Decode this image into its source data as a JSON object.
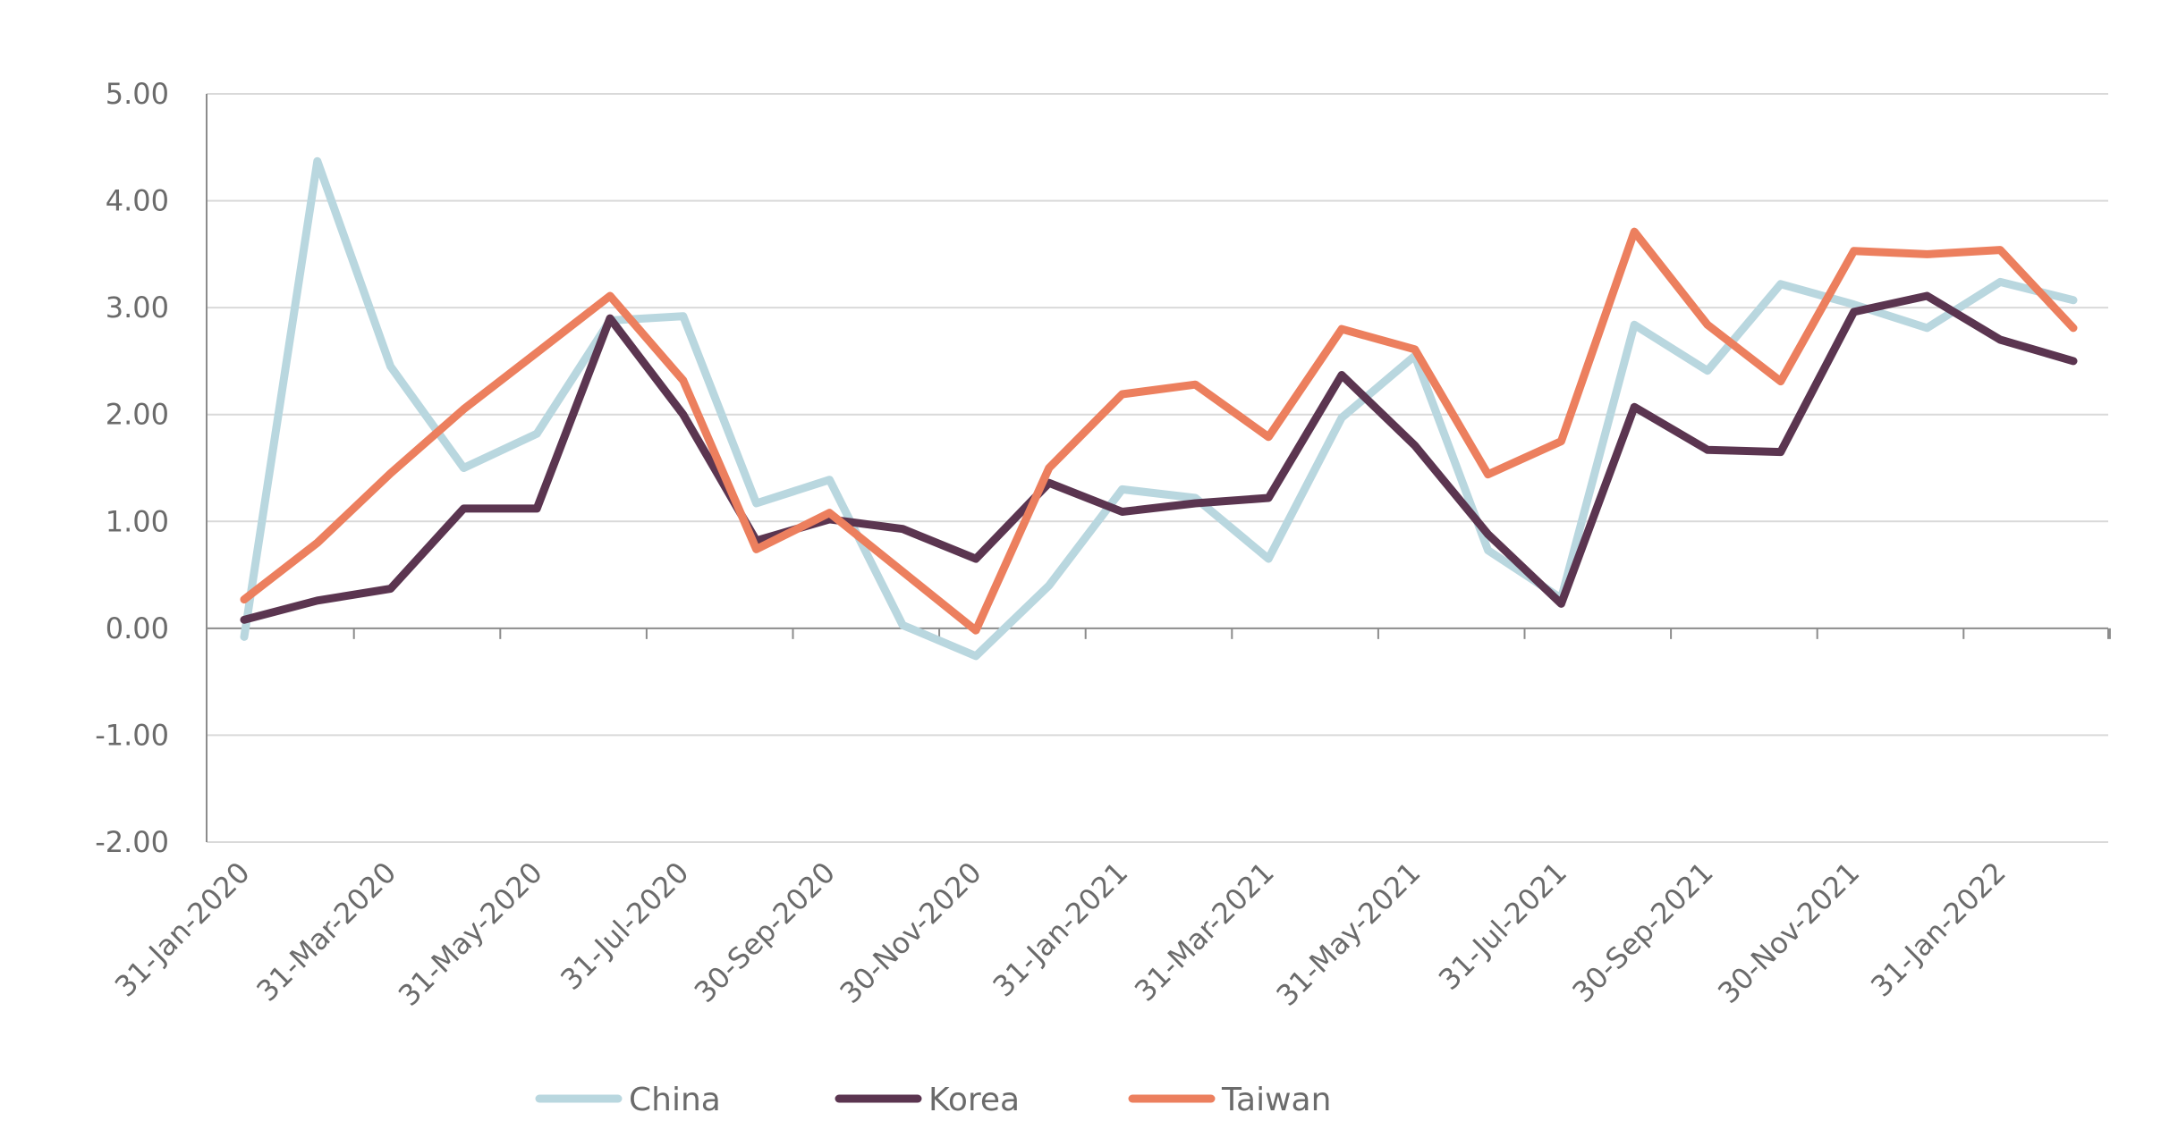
{
  "chart_data": {
    "type": "line",
    "title": "",
    "xlabel": "",
    "ylabel": "",
    "ylim": [
      -2,
      5
    ],
    "yticks": [
      "5.00",
      "4.00",
      "3.00",
      "2.00",
      "1.00",
      "0.00",
      "-1.00",
      "-2.00"
    ],
    "grid": true,
    "legend_position": "bottom",
    "x": [
      "31-Jan-2020",
      "29-Feb-2020",
      "31-Mar-2020",
      "30-Apr-2020",
      "31-May-2020",
      "30-Jun-2020",
      "31-Jul-2020",
      "31-Aug-2020",
      "30-Sep-2020",
      "31-Oct-2020",
      "30-Nov-2020",
      "31-Dec-2020",
      "31-Jan-2021",
      "28-Feb-2021",
      "31-Mar-2021",
      "30-Apr-2021",
      "31-May-2021",
      "30-Jun-2021",
      "31-Jul-2021",
      "31-Aug-2021",
      "30-Sep-2021",
      "31-Oct-2021",
      "30-Nov-2021",
      "31-Dec-2021",
      "31-Jan-2022",
      "28-Feb-2022"
    ],
    "xtick_labels": [
      "31-Jan-2020",
      "31-Mar-2020",
      "31-May-2020",
      "31-Jul-2020",
      "30-Sep-2020",
      "30-Nov-2020",
      "31-Jan-2021",
      "31-Mar-2021",
      "31-May-2021",
      "31-Jul-2021",
      "30-Sep-2021",
      "30-Nov-2021",
      "31-Jan-2022"
    ],
    "series": [
      {
        "name": "China",
        "color": "#b9d7df",
        "values": [
          -0.08,
          4.37,
          2.45,
          1.5,
          1.82,
          2.88,
          2.92,
          1.17,
          1.39,
          0.03,
          -0.26,
          0.4,
          1.3,
          1.22,
          0.65,
          1.97,
          2.55,
          0.73,
          0.28,
          2.84,
          2.41,
          3.22,
          3.03,
          2.81,
          3.24,
          3.07
        ]
      },
      {
        "name": "Korea",
        "color": "#5b3550",
        "values": [
          0.08,
          0.26,
          0.37,
          1.12,
          1.12,
          2.9,
          2.0,
          0.82,
          1.02,
          0.93,
          0.65,
          1.36,
          1.09,
          1.17,
          1.22,
          2.37,
          1.71,
          0.88,
          0.23,
          2.07,
          1.67,
          1.65,
          2.96,
          3.11,
          2.7,
          2.5
        ]
      },
      {
        "name": "Taiwan",
        "color": "#ec7f5e",
        "values": [
          0.27,
          0.8,
          1.45,
          2.05,
          2.58,
          3.11,
          2.32,
          0.74,
          1.08,
          0.53,
          -0.02,
          1.5,
          2.19,
          2.28,
          1.79,
          2.8,
          2.61,
          1.44,
          1.75,
          3.71,
          2.84,
          2.31,
          3.53,
          3.5,
          3.54,
          2.81
        ]
      }
    ]
  }
}
